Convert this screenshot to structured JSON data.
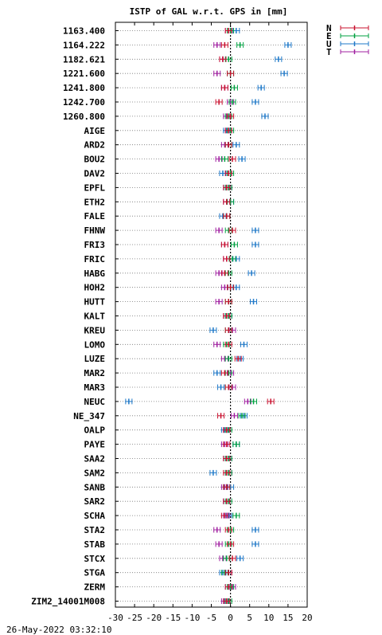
{
  "chart_data": {
    "type": "scatter",
    "title": "ISTP of GAL w.r.t. GPS in [mm]",
    "timestamp": "26-May-2022 03:32:10",
    "xlim": [
      -30,
      20
    ],
    "xticks": [
      "-30",
      "-25",
      "-20",
      "-15",
      "-10",
      "-5",
      "0",
      "5",
      "10",
      "15",
      "20"
    ],
    "grid": "horizontal dotted",
    "zero_line": true,
    "legend_placement": "top-right",
    "categories": [
      "1163.400",
      "1164.222",
      "1182.621",
      "1221.600",
      "1241.800",
      "1242.700",
      "1260.800",
      "AIGE",
      "ARD2",
      "BOU2",
      "DAV2",
      "EPFL",
      "ETH2",
      "FALE",
      "FHNW",
      "FRI3",
      "FRIC",
      "HABG",
      "HOH2",
      "HUTT",
      "KALT",
      "KREU",
      "LOMO",
      "LUZE",
      "MAR2",
      "MAR3",
      "NEUC",
      "NE_347",
      "OALP",
      "PAYE",
      "SAA2",
      "SAM2",
      "SANB",
      "SAR2",
      "SCHA",
      "STA2",
      "STAB",
      "STCX",
      "STGA",
      "ZERM",
      "ZIM2_14001M008"
    ],
    "series": [
      {
        "name": "N",
        "color": "#c8102e",
        "values": [
          -0.5,
          -1.5,
          -2,
          0,
          -1.5,
          -3,
          0,
          -0.5,
          -0.5,
          0.5,
          -0.5,
          -1,
          -1,
          -1,
          0.5,
          -1.5,
          -1,
          -1.5,
          0,
          -0.5,
          -1,
          -0.5,
          -0.5,
          2,
          -1.5,
          -0.5,
          10.5,
          -2.5,
          -1,
          -1,
          -1,
          -1,
          -1,
          -1,
          -1.5,
          -0.5,
          0,
          0.5,
          -0.5,
          -0.5,
          -1
        ]
      },
      {
        "name": "E",
        "color": "#00a040",
        "values": [
          0,
          2.5,
          -0.5,
          0,
          1,
          0.5,
          -0.5,
          0,
          -0.5,
          -1.5,
          0,
          -0.5,
          0,
          -1,
          -0.5,
          1,
          0.5,
          -0.5,
          0,
          -0.5,
          -0.5,
          -0.5,
          -1,
          -0.5,
          -0.5,
          -0.5,
          6,
          3,
          -0.5,
          1.5,
          -0.5,
          -0.5,
          -1,
          -0.5,
          1.5,
          0,
          -0.5,
          -1,
          -1.5,
          0,
          -0.5
        ]
      },
      {
        "name": "U",
        "color": "#1e78c8",
        "values": [
          1.5,
          15,
          12.5,
          14,
          8,
          6.5,
          9,
          -1,
          1.5,
          3,
          -2,
          -1,
          0,
          -2,
          6.5,
          6.5,
          1.5,
          5.5,
          1.5,
          6,
          -0.5,
          -4.5,
          3.5,
          2.5,
          -3.5,
          -2.5,
          -26.5,
          3.5,
          -1.5,
          1.5,
          -1,
          -4.5,
          0,
          -1,
          -0.5,
          6.5,
          6.5,
          2.5,
          -2,
          -0.5,
          -1
        ]
      },
      {
        "name": "T",
        "color": "#a020a0",
        "values": [
          -0.5,
          -3.5,
          -2,
          -3.5,
          -1.5,
          0,
          -1,
          -0.5,
          -1.5,
          -3,
          -0.5,
          -0.5,
          -1,
          -1,
          -3,
          -1.5,
          -1,
          -3,
          -1.5,
          -3,
          -1,
          0.5,
          -3.5,
          -1.5,
          0,
          0.5,
          4.5,
          1,
          -1,
          -1.5,
          -0.5,
          -0.5,
          -1.5,
          -1,
          -1,
          -3.5,
          -3,
          -2,
          -0.5,
          0.5,
          -1.5
        ]
      }
    ]
  }
}
